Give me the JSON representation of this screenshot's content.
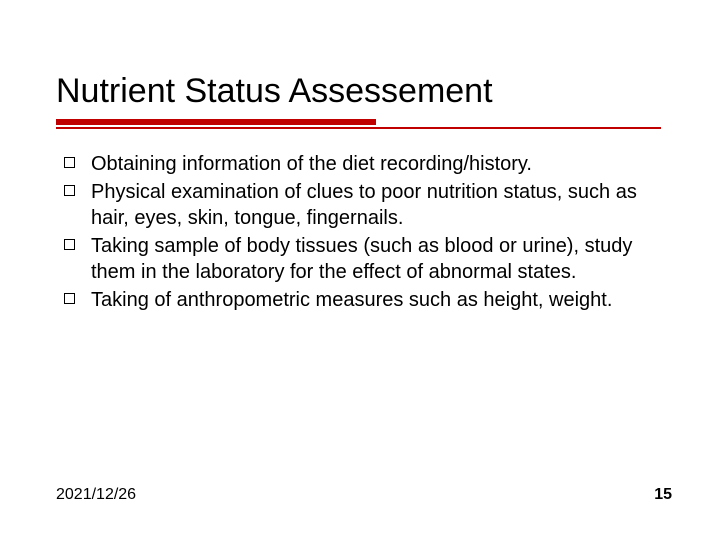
{
  "slide": {
    "title": "Nutrient Status Assessement",
    "title_color": "#000000",
    "title_fontsize": 34,
    "underline_color": "#c00000",
    "underline_thick_width": 320,
    "underline_thick_height": 6,
    "underline_thin_width": 605,
    "underline_thin_height": 2,
    "background_color": "#ffffff",
    "body_fontsize": 20,
    "body_color": "#000000",
    "bullets": [
      "Obtaining information of the diet recording/history.",
      "Physical examination of clues to poor nutrition status, such as hair, eyes, skin, tongue, fingernails.",
      "Taking sample of body tissues (such as blood or urine), study them in the laboratory for the effect of abnormal states.",
      "Taking of anthropometric measures such as height, weight."
    ],
    "bullet_marker_style": "hollow-square",
    "footer": {
      "date": "2021/12/26",
      "page_number": "15",
      "fontsize": 16,
      "color": "#000000"
    }
  }
}
